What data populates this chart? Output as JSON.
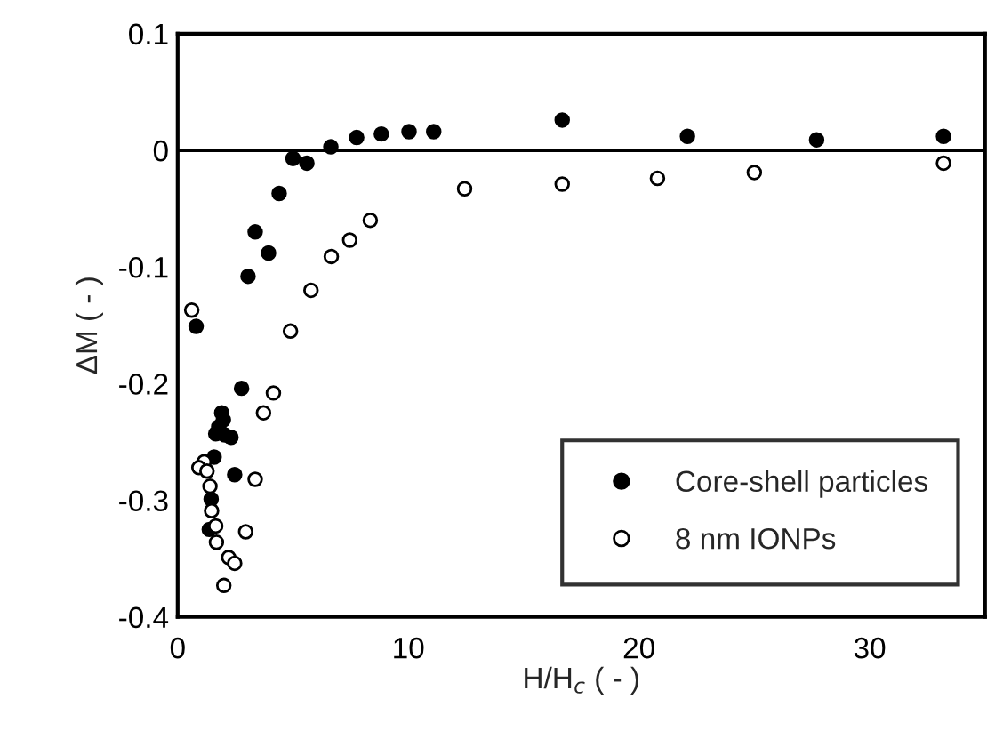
{
  "chart_data": {
    "type": "scatter",
    "xlabel": "H/H$_{c}$ ( - )",
    "ylabel": "ΔM ( - )",
    "xlim": [
      0,
      35
    ],
    "xticks": [
      0,
      10,
      20,
      30
    ],
    "ylim": [
      -0.4,
      0.1
    ],
    "yticks": [
      -0.4,
      -0.3,
      -0.2,
      -0.1,
      0,
      0.1
    ],
    "grid": false,
    "legend": "bottom right",
    "ref_lines": [
      {
        "axis": "y",
        "value": 0,
        "color": "#000000"
      }
    ],
    "series": [
      {
        "name": "Core-shell particles",
        "color": "#000000",
        "marker": "circle",
        "x": [
          0.8,
          3.05,
          3.36,
          3.94,
          4.4,
          5.0,
          5.6,
          6.64,
          7.76,
          8.83,
          10.03,
          11.1,
          16.67,
          22.1,
          27.7,
          33.2,
          2.77,
          1.91,
          1.98,
          1.78,
          1.65,
          2.04,
          2.31,
          1.58,
          2.47,
          1.45,
          1.37
        ],
        "values": [
          -0.151,
          -0.108,
          -0.07,
          -0.088,
          -0.037,
          -0.007,
          -0.011,
          0.003,
          0.011,
          0.014,
          0.016,
          0.016,
          0.026,
          0.012,
          0.009,
          0.012,
          -0.204,
          -0.225,
          -0.231,
          -0.237,
          -0.243,
          -0.244,
          -0.246,
          -0.263,
          -0.278,
          -0.299,
          -0.325
        ]
      },
      {
        "name": "8 nm IONPs",
        "color": "#ffffff",
        "marker": "circle",
        "x": [
          0.61,
          4.89,
          5.78,
          6.66,
          7.46,
          8.35,
          12.44,
          4.15,
          3.72,
          3.36,
          2.95,
          1.15,
          0.92,
          1.27,
          1.4,
          1.47,
          1.65,
          1.68,
          2.21,
          2.47,
          2.0,
          16.67,
          20.8,
          25.0,
          33.2
        ],
        "values": [
          -0.137,
          -0.155,
          -0.12,
          -0.091,
          -0.077,
          -0.06,
          -0.033,
          -0.208,
          -0.225,
          -0.282,
          -0.327,
          -0.267,
          -0.272,
          -0.275,
          -0.288,
          -0.309,
          -0.322,
          -0.336,
          -0.349,
          -0.354,
          -0.373,
          -0.029,
          -0.024,
          -0.019,
          -0.011
        ]
      }
    ]
  }
}
